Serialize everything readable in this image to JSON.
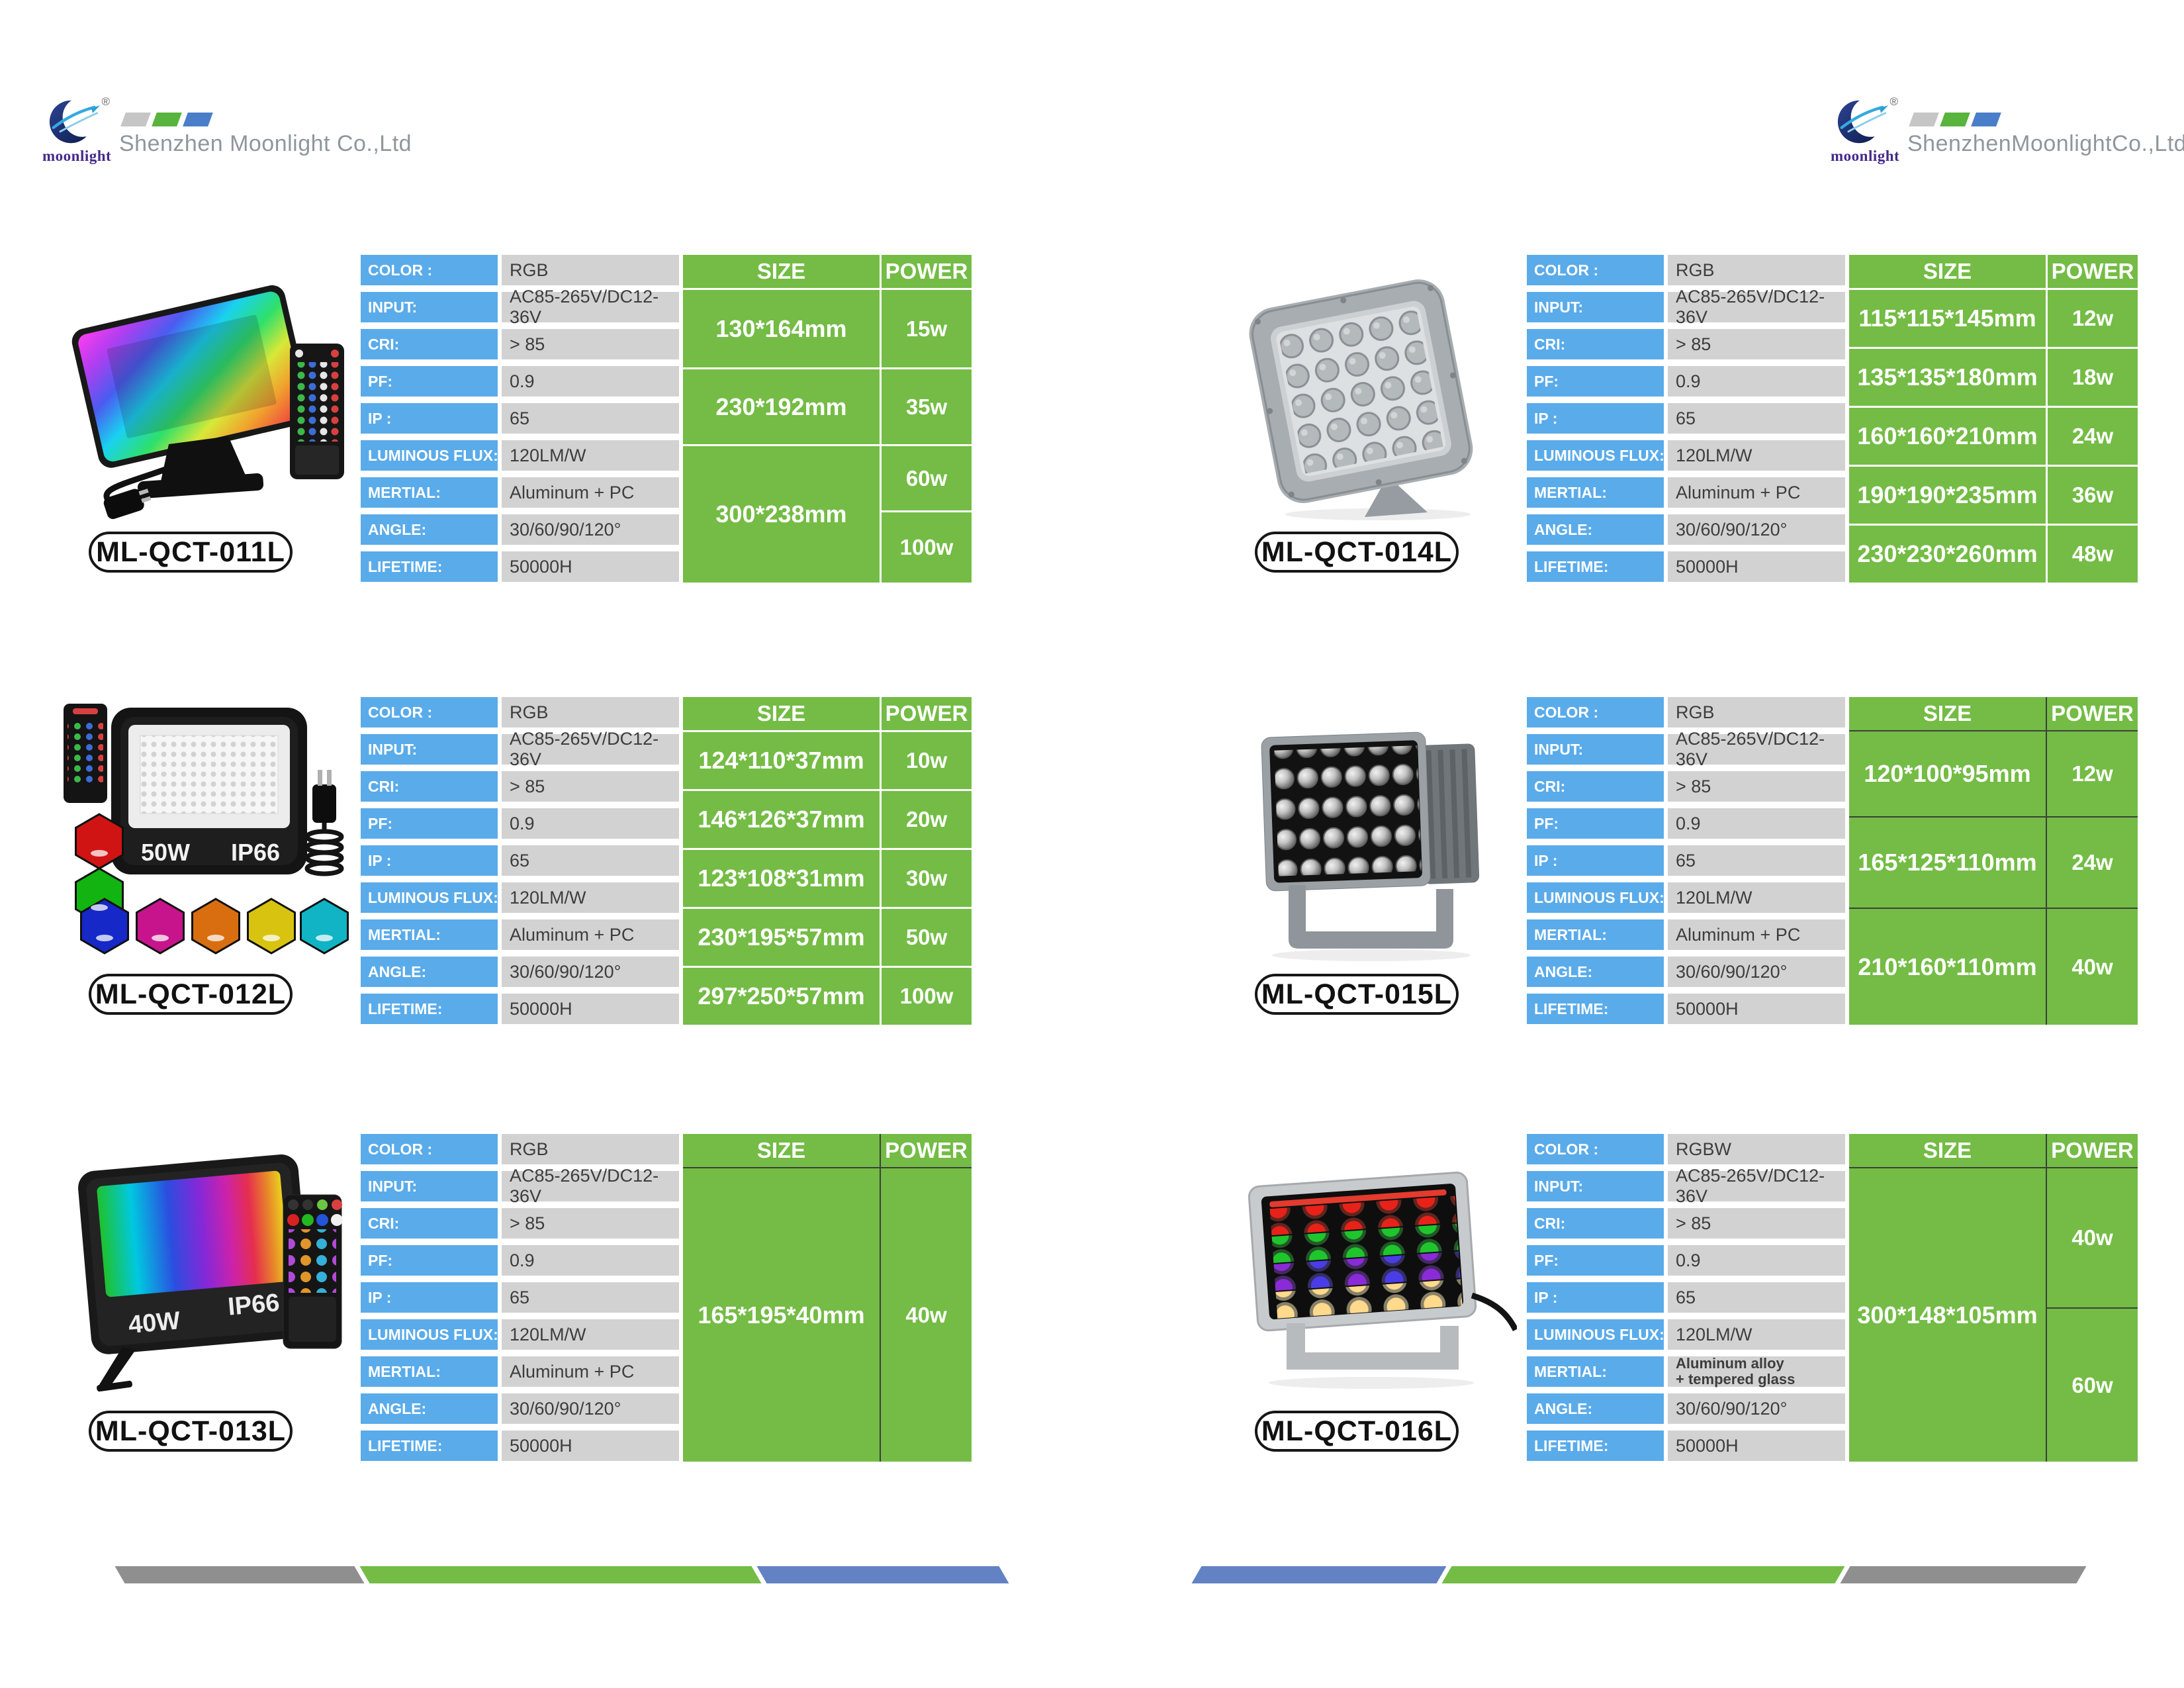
{
  "header": {
    "logo_text": "moonlight",
    "registered_mark": "®",
    "company_left": "Shenzhen Moonlight Co.,Ltd",
    "company_right": "ShenzhenMoonlightCo.,Ltd"
  },
  "table_headers": {
    "size": "SIZE",
    "power": "POWER"
  },
  "accent_colors": {
    "label_blue": "#5aabea",
    "value_gray": "#d2d2d2",
    "table_green": "#74bc45",
    "bar_gray": "#8f8f8f",
    "bar_green": "#74bc45",
    "bar_blue": "#6282c4"
  },
  "products": [
    {
      "model": "ML-QCT-011L",
      "photo": {
        "type": "rgb-flood-light-with-remote-and-plug"
      },
      "specs": [
        {
          "label": "COLOR :",
          "value": "RGB"
        },
        {
          "label": "INPUT:",
          "value": "AC85-265V/DC12-36V"
        },
        {
          "label": "CRI:",
          "value": "> 85"
        },
        {
          "label": "PF:",
          "value": "0.9"
        },
        {
          "label": "IP :",
          "value": "65"
        },
        {
          "label": "LUMINOUS FLUX:",
          "value": "120LM/W"
        },
        {
          "label": "MERTIAL:",
          "value": "Aluminum + PC"
        },
        {
          "label": "ANGLE:",
          "value": "30/60/90/120°"
        },
        {
          "label": "LIFETIME:",
          "value": "50000H"
        }
      ],
      "size_rows": [
        {
          "size": "130*164mm",
          "powers": [
            "15w"
          ]
        },
        {
          "size": "230*192mm",
          "powers": [
            "35w"
          ]
        },
        {
          "size": "300*238mm",
          "powers": [
            "60w",
            "100w"
          ]
        }
      ]
    },
    {
      "model": "ML-QCT-012L",
      "photo": {
        "type": "black-flood-light-with-remote-plug-and-color-swatches",
        "wattage": "50W",
        "ip_rating": "IP66"
      },
      "specs": [
        {
          "label": "COLOR :",
          "value": "RGB"
        },
        {
          "label": "INPUT:",
          "value": "AC85-265V/DC12-36V"
        },
        {
          "label": "CRI:",
          "value": "> 85"
        },
        {
          "label": "PF:",
          "value": "0.9"
        },
        {
          "label": "IP :",
          "value": "65"
        },
        {
          "label": "LUMINOUS FLUX:",
          "value": "120LM/W"
        },
        {
          "label": "MERTIAL:",
          "value": "Aluminum + PC"
        },
        {
          "label": "ANGLE:",
          "value": "30/60/90/120°"
        },
        {
          "label": "LIFETIME:",
          "value": "50000H"
        }
      ],
      "size_rows": [
        {
          "size": "124*110*37mm",
          "powers": [
            "10w"
          ]
        },
        {
          "size": "146*126*37mm",
          "powers": [
            "20w"
          ]
        },
        {
          "size": "123*108*31mm",
          "powers": [
            "30w"
          ]
        },
        {
          "size": "230*195*57mm",
          "powers": [
            "50w"
          ]
        },
        {
          "size": "297*250*57mm",
          "powers": [
            "100w"
          ]
        }
      ]
    },
    {
      "model": "ML-QCT-013L",
      "photo": {
        "type": "rgb-flood-light-with-remote",
        "wattage": "40W",
        "ip_rating": "IP66"
      },
      "specs": [
        {
          "label": "COLOR :",
          "value": "RGB"
        },
        {
          "label": "INPUT:",
          "value": "AC85-265V/DC12-36V"
        },
        {
          "label": "CRI:",
          "value": "> 85"
        },
        {
          "label": "PF:",
          "value": "0.9"
        },
        {
          "label": "IP :",
          "value": "65"
        },
        {
          "label": "LUMINOUS FLUX:",
          "value": "120LM/W"
        },
        {
          "label": "MERTIAL:",
          "value": "Aluminum + PC"
        },
        {
          "label": "ANGLE:",
          "value": "30/60/90/120°"
        },
        {
          "label": "LIFETIME:",
          "value": "50000H"
        }
      ],
      "size_rows": [
        {
          "size": "165*195*40mm",
          "powers": [
            "40w"
          ]
        }
      ]
    },
    {
      "model": "ML-QCT-014L",
      "photo": {
        "type": "gray-square-led-projector"
      },
      "specs": [
        {
          "label": "COLOR :",
          "value": "RGB"
        },
        {
          "label": "INPUT:",
          "value": "AC85-265V/DC12-36V"
        },
        {
          "label": "CRI:",
          "value": "> 85"
        },
        {
          "label": "PF:",
          "value": "0.9"
        },
        {
          "label": "IP :",
          "value": "65"
        },
        {
          "label": "LUMINOUS FLUX:",
          "value": "120LM/W"
        },
        {
          "label": "MERTIAL:",
          "value": "Aluminum + PC"
        },
        {
          "label": "ANGLE:",
          "value": "30/60/90/120°"
        },
        {
          "label": "LIFETIME:",
          "value": "50000H"
        }
      ],
      "size_rows": [
        {
          "size": "115*115*145mm",
          "powers": [
            "12w"
          ]
        },
        {
          "size": "135*135*180mm",
          "powers": [
            "18w"
          ]
        },
        {
          "size": "160*160*210mm",
          "powers": [
            "24w"
          ]
        },
        {
          "size": "190*190*235mm",
          "powers": [
            "36w"
          ]
        },
        {
          "size": "230*230*260mm",
          "powers": [
            "48w"
          ]
        }
      ]
    },
    {
      "model": "ML-QCT-015L",
      "photo": {
        "type": "gray-led-projector-with-bracket"
      },
      "specs": [
        {
          "label": "COLOR :",
          "value": "RGB"
        },
        {
          "label": "INPUT:",
          "value": "AC85-265V/DC12-36V"
        },
        {
          "label": "CRI:",
          "value": "> 85"
        },
        {
          "label": "PF:",
          "value": "0.9"
        },
        {
          "label": "IP :",
          "value": "65"
        },
        {
          "label": "LUMINOUS FLUX:",
          "value": "120LM/W"
        },
        {
          "label": "MERTIAL:",
          "value": "Aluminum + PC"
        },
        {
          "label": "ANGLE:",
          "value": "30/60/90/120°"
        },
        {
          "label": "LIFETIME:",
          "value": "50000H"
        }
      ],
      "size_rows": [
        {
          "size": "120*100*95mm",
          "powers": [
            "12w"
          ]
        },
        {
          "size": "165*125*110mm",
          "powers": [
            "24w"
          ]
        },
        {
          "size": "210*160*110mm",
          "powers": [
            "40w"
          ]
        }
      ]
    },
    {
      "model": "ML-QCT-016L",
      "photo": {
        "type": "rgbw-multi-row-flood-light"
      },
      "specs": [
        {
          "label": "COLOR :",
          "value": "RGBW"
        },
        {
          "label": "INPUT:",
          "value": "AC85-265V/DC12-36V"
        },
        {
          "label": "CRI:",
          "value": "> 85"
        },
        {
          "label": "PF:",
          "value": "0.9"
        },
        {
          "label": "IP :",
          "value": "65"
        },
        {
          "label": "LUMINOUS FLUX:",
          "value": "120LM/W"
        },
        {
          "label": "MERTIAL:",
          "value": "Aluminum  alloy\n+ tempered glass"
        },
        {
          "label": "ANGLE:",
          "value": "30/60/90/120°"
        },
        {
          "label": "LIFETIME:",
          "value": "50000H"
        }
      ],
      "size_rows": [
        {
          "size": "300*148*105mm",
          "powers": [
            "40w",
            "60w"
          ]
        }
      ]
    }
  ]
}
